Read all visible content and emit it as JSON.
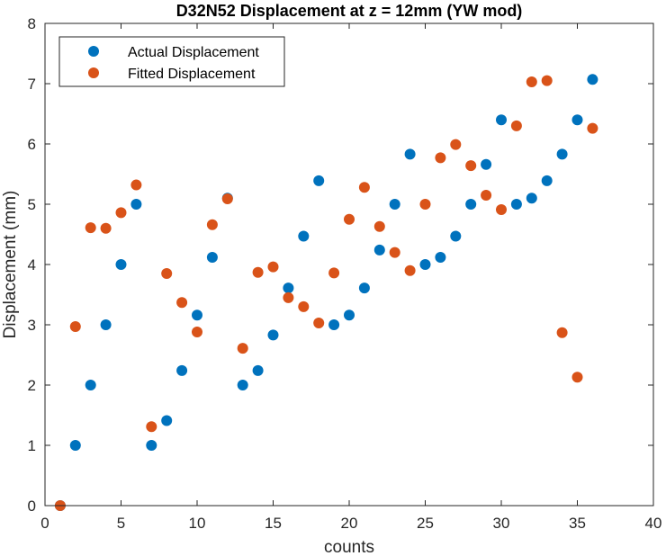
{
  "chart_data": {
    "type": "scatter",
    "title": "D32N52 Displacement at z = 12mm (YW mod)",
    "xlabel": "counts",
    "ylabel": "Displacement (mm)",
    "xlim": [
      0,
      40
    ],
    "ylim": [
      0,
      8
    ],
    "xticks": [
      0,
      5,
      10,
      15,
      20,
      25,
      30,
      35,
      40
    ],
    "yticks": [
      0,
      1,
      2,
      3,
      4,
      5,
      6,
      7,
      8
    ],
    "grid": false,
    "legend_position": "top-left",
    "series": [
      {
        "name": "Actual Displacement",
        "color": "#0072BD",
        "x": [
          1,
          2,
          3,
          4,
          5,
          6,
          7,
          8,
          9,
          10,
          11,
          12,
          13,
          14,
          15,
          16,
          17,
          18,
          19,
          20,
          21,
          22,
          23,
          24,
          25,
          26,
          27,
          28,
          29,
          30,
          31,
          32,
          33,
          34,
          35,
          36
        ],
        "y": [
          0,
          1,
          2,
          3,
          4,
          5,
          1,
          1.41,
          2.24,
          3.16,
          4.12,
          5.1,
          2,
          2.24,
          2.83,
          3.61,
          4.47,
          5.39,
          3,
          3.16,
          3.61,
          4.24,
          5,
          5.83,
          4,
          4.12,
          4.47,
          5,
          5.66,
          6.4,
          5,
          5.1,
          5.39,
          5.83,
          6.4,
          7.07
        ]
      },
      {
        "name": "Fitted Displacement",
        "color": "#D95319",
        "x": [
          1,
          2,
          3,
          4,
          5,
          6,
          7,
          8,
          9,
          10,
          11,
          12,
          13,
          14,
          15,
          16,
          17,
          18,
          19,
          20,
          21,
          22,
          23,
          24,
          25,
          26,
          27,
          28,
          29,
          30,
          31,
          32,
          33,
          34,
          35,
          36
        ],
        "y": [
          0,
          2.97,
          4.61,
          4.6,
          4.86,
          5.32,
          1.31,
          3.85,
          3.37,
          2.88,
          4.66,
          5.09,
          2.61,
          3.87,
          3.96,
          3.45,
          3.3,
          3.03,
          3.86,
          4.75,
          5.28,
          4.63,
          4.2,
          3.9,
          5.0,
          5.77,
          5.99,
          5.64,
          5.15,
          4.91,
          6.3,
          7.03,
          7.05,
          2.87,
          2.13,
          6.26
        ]
      }
    ]
  }
}
